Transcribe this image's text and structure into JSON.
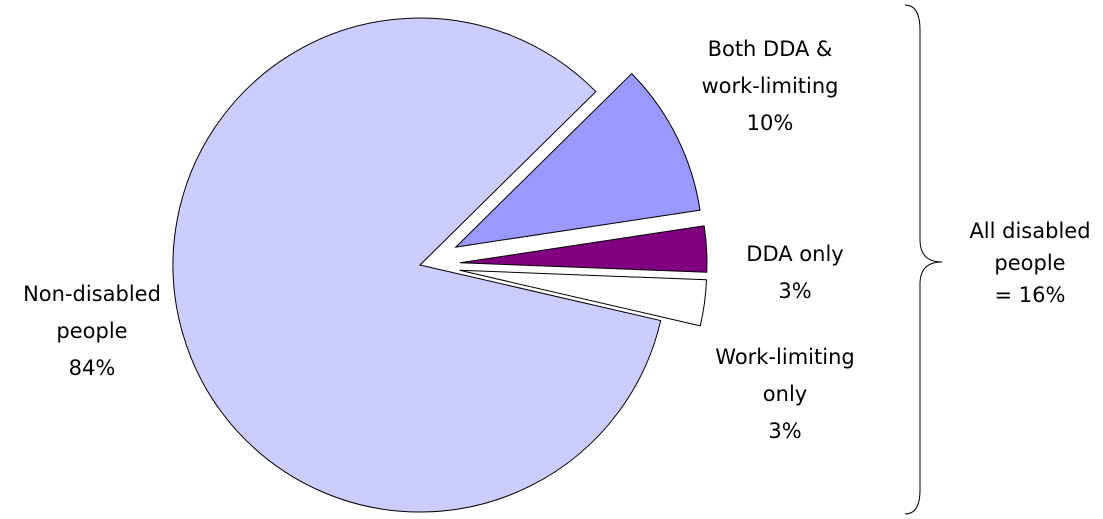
{
  "chart_data": {
    "type": "pie",
    "categories": [
      [
        "Both DDA &",
        "work-limiting"
      ],
      [
        "DDA only"
      ],
      [
        "Work-limiting",
        "only"
      ],
      [
        "Non-disabled",
        "people"
      ]
    ],
    "values": [
      10,
      3,
      3,
      84
    ],
    "value_labels": [
      "10%",
      "3%",
      "3%",
      "84%"
    ],
    "colors": [
      "#9999ff",
      "#800080",
      "#ffffff",
      "#ccccff"
    ],
    "annotation": [
      "All disabled",
      "people",
      "= 16%"
    ]
  }
}
